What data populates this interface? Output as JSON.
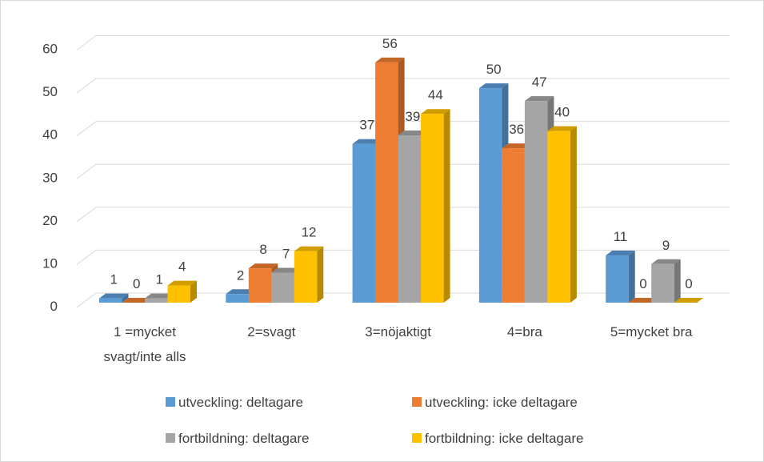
{
  "chart_data": {
    "type": "bar3d",
    "categories": [
      "1 =mycket svagt/inte alls",
      "2=svagt",
      "3=nöjaktigt",
      "4=bra",
      "5=mycket bra"
    ],
    "series": [
      {
        "name": "utveckling: deltagare",
        "color": "#5b9bd5",
        "values": [
          1,
          2,
          37,
          50,
          11
        ]
      },
      {
        "name": "utveckling: icke deltagare",
        "color": "#ed7d31",
        "values": [
          0,
          8,
          56,
          36,
          0
        ]
      },
      {
        "name": "fortbildning: deltagare",
        "color": "#a5a5a5",
        "values": [
          1,
          7,
          39,
          47,
          9
        ]
      },
      {
        "name": "fortbildning: icke deltagare",
        "color": "#ffc000",
        "values": [
          4,
          12,
          44,
          40,
          0
        ]
      }
    ],
    "ylim": [
      0,
      60
    ],
    "yticks": [
      0,
      10,
      20,
      30,
      40,
      50,
      60
    ],
    "grid": true,
    "legend": "bottom"
  }
}
